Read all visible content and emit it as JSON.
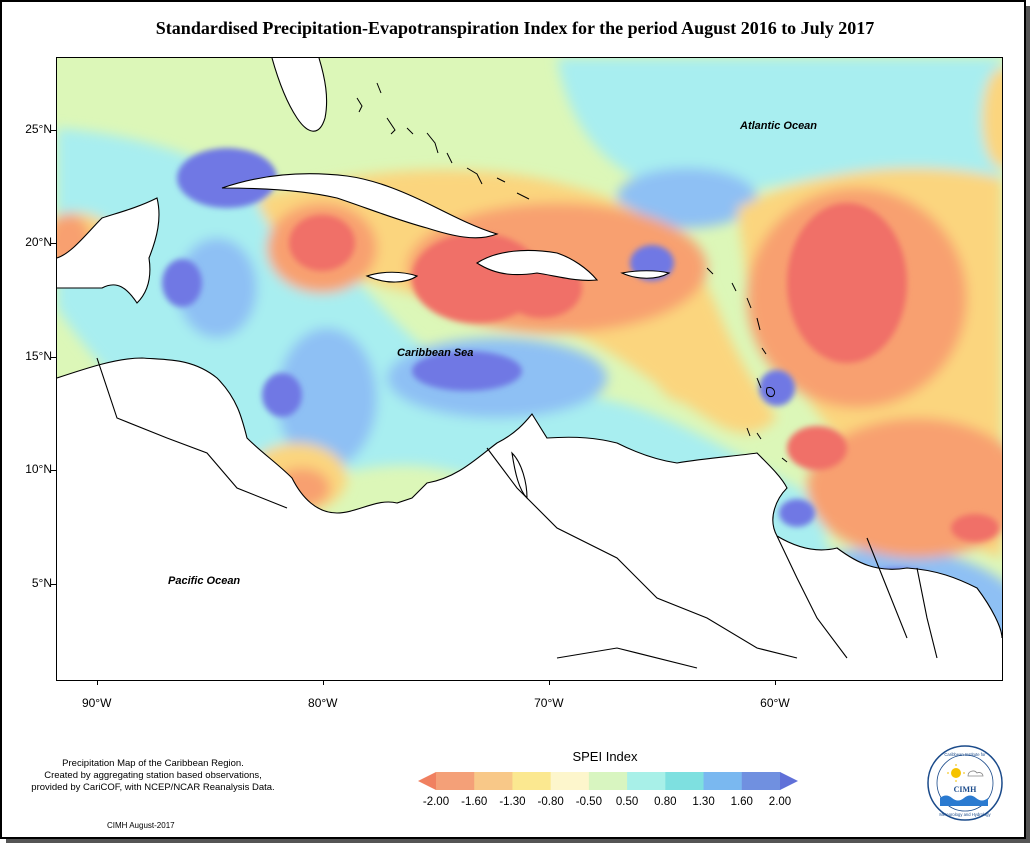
{
  "title": "Standardised Precipitation-Evapotranspiration Index for the period August 2016 to July 2017",
  "axes": {
    "lat_labels": [
      {
        "text": "25°N",
        "lat": 25
      },
      {
        "text": "20°N",
        "lat": 20
      },
      {
        "text": "15°N",
        "lat": 15
      },
      {
        "text": "10°N",
        "lat": 10
      },
      {
        "text": "5°N",
        "lat": 5
      }
    ],
    "lon_labels": [
      {
        "text": "90°W",
        "lon": -90
      },
      {
        "text": "80°W",
        "lon": -80
      },
      {
        "text": "70°W",
        "lon": -70
      },
      {
        "text": "60°W",
        "lon": -60
      }
    ],
    "lon_range": [
      -91.8,
      -50.0
    ],
    "lat_range": [
      0.8,
      28.2
    ]
  },
  "ocean_labels": {
    "atlantic": "Atlantic Ocean",
    "caribbean": "Caribbean Sea",
    "pacific": "Pacific Ocean"
  },
  "legend": {
    "title": "SPEI Index",
    "labels": [
      "-2.00",
      "-1.60",
      "-1.30",
      "-0.80",
      "-0.50",
      "0.50",
      "0.80",
      "1.30",
      "1.60",
      "2.00"
    ],
    "colors": [
      "#f08060",
      "#f4a078",
      "#f8c888",
      "#fbe890",
      "#fdf6cc",
      "#d8f5c0",
      "#a8f0e8",
      "#7ee0e0",
      "#7ab8f0",
      "#7090e0",
      "#6070d8"
    ]
  },
  "note": {
    "line1": "Precipitation Map of the Caribbean Region.",
    "line2": "Created by aggregating station based observations,",
    "line3": "provided by CariCOF, with NCEP/NCAR Reanalysis Data."
  },
  "credit": "CIMH August-2017",
  "logo": {
    "top_text": "Caribbean Institute for",
    "bottom_text": "Meteorology and Hydrology",
    "acronym": "CIMH"
  },
  "colors": {
    "extreme_dry": "#f07068",
    "severe_dry": "#f8a070",
    "moderate_dry": "#fbd57e",
    "near_normal": "#dcf7b8",
    "moderate_wet": "#a8eef0",
    "severe_wet": "#8ec0f4",
    "extreme_wet": "#7078e4"
  }
}
